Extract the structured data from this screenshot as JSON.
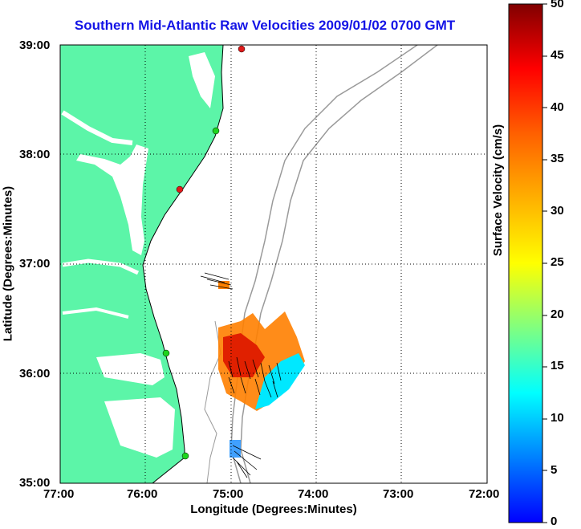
{
  "title": "Southern Mid-Atlantic Raw Velocities 2009/01/02 0700 GMT",
  "xlabel": "Longitude (Degrees:Minutes)",
  "ylabel": "Latitude (Degrees:Minutes)",
  "colorbar": {
    "label": "Surface Velocity (cm/s)",
    "min": 0,
    "max": 50,
    "ticks": [
      "0",
      "5",
      "10",
      "15",
      "20",
      "25",
      "30",
      "35",
      "40",
      "45",
      "50"
    ]
  },
  "xticks": [
    "77:00",
    "76:00",
    "75:00",
    "74:00",
    "73:00",
    "72:00"
  ],
  "yticks": [
    "39:00",
    "38:00",
    "37:00",
    "36:00",
    "35:00"
  ],
  "colors": {
    "land": "#5cf5a8",
    "title": "#1414e6",
    "bathymetry": "#9a9a9a",
    "site_green": "#1ed41e",
    "site_red": "#e01a1a"
  },
  "chart_data": {
    "type": "heatmap",
    "title": "Southern Mid-Atlantic Raw Velocities 2009/01/02 0700 GMT",
    "xlabel": "Longitude (Degrees:Minutes)",
    "ylabel": "Latitude (Degrees:Minutes)",
    "xlim": [
      -77,
      -72
    ],
    "ylim": [
      35,
      39
    ],
    "grid": true,
    "colorbar_range": [
      0,
      50
    ],
    "radar_sites": [
      {
        "lon": -74.85,
        "lat": 38.96,
        "color": "red"
      },
      {
        "lon": -75.15,
        "lat": 38.21,
        "color": "green"
      },
      {
        "lon": -75.55,
        "lat": 37.68,
        "color": "red"
      },
      {
        "lon": -75.67,
        "lat": 36.18,
        "color": "green"
      },
      {
        "lon": -75.47,
        "lat": 35.25,
        "color": "green"
      }
    ]
  }
}
